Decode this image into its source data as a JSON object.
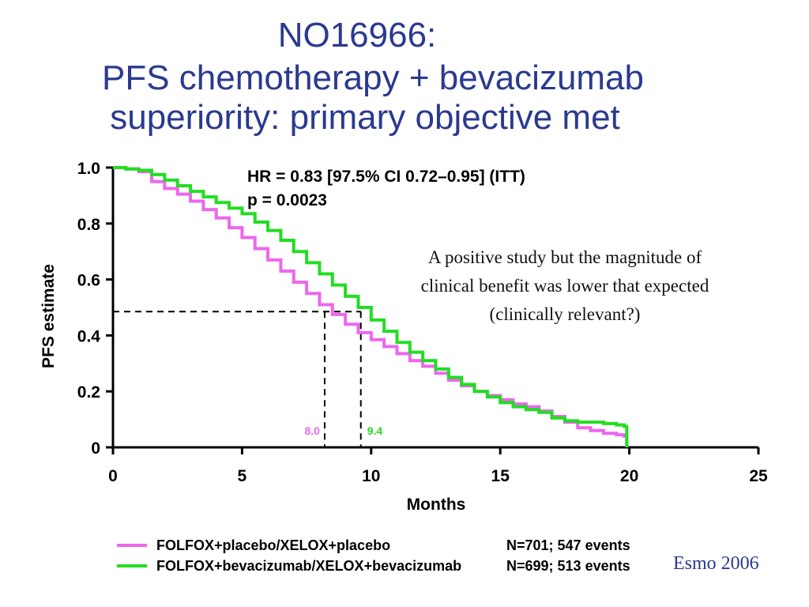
{
  "title": {
    "line1": "NO16966:",
    "line2": "PFS chemotherapy + bevacizumab",
    "line3": "superiority: primary objective met"
  },
  "annotation": {
    "line1": "A positive study but the magnitude of",
    "line2": "clinical benefit was lower that expected",
    "line3": "(clinically relevant?)"
  },
  "source": "Esmo 2006",
  "colors": {
    "placebo": "#ee66ee",
    "bevacizumab": "#22dd22",
    "title": "#2b3a8f"
  },
  "chart_data": {
    "type": "line",
    "title": "",
    "xlabel": "Months",
    "ylabel": "PFS estimate",
    "xlim": [
      0,
      25
    ],
    "ylim": [
      0,
      1.0
    ],
    "x_ticks": [
      "0",
      "5",
      "10",
      "15",
      "20",
      "25"
    ],
    "y_ticks": [
      "0",
      "0.2",
      "0.4",
      "0.6",
      "0.8",
      "1.0"
    ],
    "stats": {
      "hr": "HR = 0.83 [97.5% CI 0.72–0.95] (ITT)",
      "p": "p = 0.0023"
    },
    "medians": [
      {
        "label": "8.0",
        "x": 8.2,
        "y": 0.485,
        "series": "placebo"
      },
      {
        "label": "9.4",
        "x": 9.6,
        "y": 0.485,
        "series": "bevacizumab"
      }
    ],
    "series": [
      {
        "key": "placebo",
        "name": "FOLFOX+placebo/XELOX+placebo",
        "n_label": "N=701; 547 events",
        "x": [
          0,
          0.5,
          1,
          1.5,
          2,
          2.5,
          3,
          3.5,
          4,
          4.5,
          5,
          5.5,
          6,
          6.5,
          7,
          7.5,
          8,
          8.5,
          9,
          9.5,
          10,
          10.5,
          11,
          11.5,
          12,
          12.5,
          13,
          13.5,
          14,
          14.5,
          15,
          15.5,
          16,
          16.5,
          17,
          17.5,
          18,
          18.5,
          19,
          19.5,
          19.8,
          19.9
        ],
        "y": [
          1.0,
          0.995,
          0.985,
          0.95,
          0.925,
          0.905,
          0.88,
          0.85,
          0.82,
          0.785,
          0.75,
          0.71,
          0.67,
          0.63,
          0.59,
          0.55,
          0.51,
          0.475,
          0.44,
          0.41,
          0.385,
          0.36,
          0.335,
          0.31,
          0.29,
          0.265,
          0.24,
          0.22,
          0.2,
          0.185,
          0.17,
          0.155,
          0.145,
          0.13,
          0.11,
          0.09,
          0.07,
          0.06,
          0.05,
          0.045,
          0.04,
          0.0
        ]
      },
      {
        "key": "bevacizumab",
        "name": "FOLFOX+bevacizumab/XELOX+bevacizumab",
        "n_label": "N=699; 513 events",
        "x": [
          0,
          0.5,
          1,
          1.5,
          2,
          2.5,
          3,
          3.5,
          4,
          4.5,
          5,
          5.5,
          6,
          6.5,
          7,
          7.5,
          8,
          8.5,
          9,
          9.5,
          10,
          10.5,
          11,
          11.5,
          12,
          12.5,
          13,
          13.5,
          14,
          14.5,
          15,
          15.5,
          16,
          16.5,
          17,
          17.5,
          18,
          18.5,
          19,
          19.5,
          19.8,
          19.9
        ],
        "y": [
          1.0,
          0.995,
          0.99,
          0.975,
          0.955,
          0.935,
          0.915,
          0.895,
          0.875,
          0.855,
          0.835,
          0.805,
          0.775,
          0.74,
          0.7,
          0.66,
          0.62,
          0.58,
          0.54,
          0.5,
          0.455,
          0.415,
          0.375,
          0.34,
          0.31,
          0.28,
          0.25,
          0.225,
          0.2,
          0.18,
          0.16,
          0.145,
          0.135,
          0.125,
          0.105,
          0.095,
          0.09,
          0.09,
          0.085,
          0.08,
          0.075,
          0.0
        ]
      }
    ]
  }
}
